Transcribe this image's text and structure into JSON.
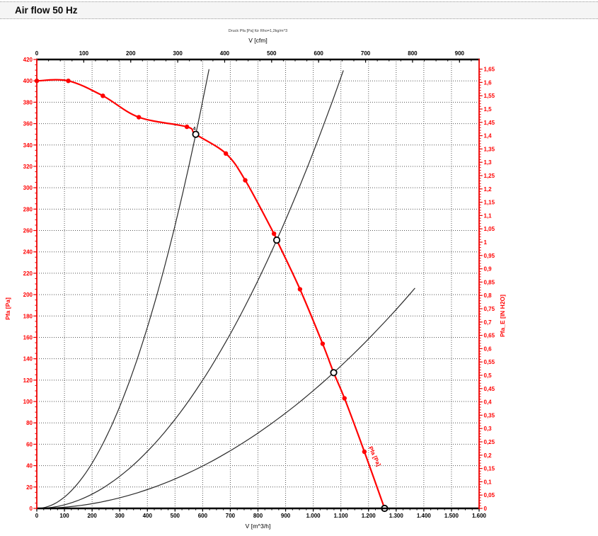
{
  "header": {
    "title": "Air flow 50 Hz"
  },
  "chart_data": {
    "type": "line",
    "subtitle": "Druck Pfa [Pa] für Rho=1,2kg/m^3",
    "axes": {
      "top": {
        "label": "V [cfm]",
        "ticks": [
          0,
          100,
          200,
          300,
          400,
          500,
          600,
          700,
          800,
          900
        ],
        "minor_step": 25,
        "m3h_per_cfm": 1.699
      },
      "bottom": {
        "label": "V [m^3/h]",
        "min": 0,
        "max": 1600,
        "major_step": 100,
        "minor_step": 25,
        "tick_labels": [
          "0",
          "100",
          "200",
          "300",
          "400",
          "500",
          "600",
          "700",
          "800",
          "900",
          "1.000",
          "1.100",
          "1.200",
          "1.300",
          "1.400",
          "1.500",
          "1.600"
        ]
      },
      "left": {
        "label": "Pfa [Pa]",
        "min": 0,
        "max": 420,
        "major_step": 20,
        "minor_step": 5,
        "tick_labels": [
          "0",
          "20",
          "40",
          "60",
          "80",
          "100",
          "120",
          "140",
          "160",
          "180",
          "200",
          "220",
          "240",
          "260",
          "280",
          "300",
          "320",
          "340",
          "360",
          "380",
          "400",
          "420"
        ]
      },
      "right": {
        "label": "Pfa_E [IN H2O]",
        "min": 0,
        "max": 1.65,
        "major_step": 0.05,
        "minor_step": 0.01,
        "pa_per_unit": 249.089,
        "tick_labels": [
          "0",
          "0,05",
          "0,1",
          "0,15",
          "0,2",
          "0,25",
          "0,3",
          "0,35",
          "0,4",
          "0,45",
          "0,5",
          "0,55",
          "0,6",
          "0,65",
          "0,7",
          "0,75",
          "0,8",
          "0,85",
          "0,9",
          "0,95",
          "1",
          "1,05",
          "1,1",
          "1,15",
          "1,2",
          "1,25",
          "1,3",
          "1,35",
          "1,4",
          "1,45",
          "1,5",
          "1,55",
          "1,6",
          "1,65"
        ]
      }
    },
    "grid": {
      "vertical_step_m3h": 100,
      "horizontal_step_pa": 20,
      "style": "dotted"
    },
    "fan_curve": {
      "label": "Pfa [Pa]",
      "points": [
        [
          0,
          400
        ],
        [
          114,
          400
        ],
        [
          239,
          386
        ],
        [
          369,
          366
        ],
        [
          543,
          357
        ],
        [
          575,
          350
        ],
        [
          684,
          332
        ],
        [
          754,
          307
        ],
        [
          858,
          257
        ],
        [
          868,
          251
        ],
        [
          952,
          205
        ],
        [
          1034,
          154
        ],
        [
          1074,
          127
        ],
        [
          1113,
          103
        ],
        [
          1185,
          53
        ],
        [
          1258,
          0
        ]
      ],
      "marker_points": [
        [
          0,
          400
        ],
        [
          114,
          400
        ],
        [
          239,
          386
        ],
        [
          369,
          366
        ],
        [
          543,
          357
        ],
        [
          684,
          332
        ],
        [
          754,
          307
        ],
        [
          858,
          257
        ],
        [
          952,
          205
        ],
        [
          1034,
          154
        ],
        [
          1113,
          103
        ],
        [
          1185,
          53
        ]
      ]
    },
    "operating_points": [
      {
        "v": 575,
        "p": 350,
        "label": "4"
      },
      {
        "v": 868,
        "p": 251,
        "label": ""
      },
      {
        "v": 1074,
        "p": 127,
        "label": ""
      },
      {
        "v": 1258,
        "p": 0,
        "label": ""
      }
    ],
    "system_curves": [
      {
        "k": 0.0010586,
        "v_end": 623
      },
      {
        "k": 0.0003332,
        "v_end": 1109
      },
      {
        "k": 0.00011011,
        "v_end": 1368
      }
    ],
    "curve_label": {
      "text": "Pfa [Pa]",
      "v": 1216,
      "p": 48,
      "angle": 65
    },
    "colors": {
      "curve": "#ff0000",
      "axis_red": "#ee0000",
      "axis_black": "#000000",
      "system_curve": "#2a2a2a",
      "grid": "#555555",
      "subtitle": "#3a3a3a"
    }
  }
}
